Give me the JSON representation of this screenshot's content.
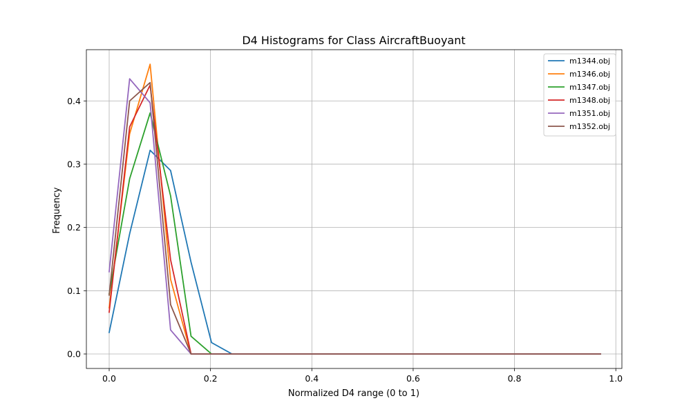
{
  "chart_data": {
    "type": "line",
    "title": "D4 Histograms for Class AircraftBuoyant",
    "xlabel": "Normalized D4 range (0 to 1)",
    "ylabel": "Frequency",
    "xlim": [
      -0.045,
      1.012
    ],
    "ylim": [
      -0.0229,
      0.481
    ],
    "xticks": [
      0.0,
      0.2,
      0.4,
      0.6,
      0.8,
      1.0
    ],
    "xtick_labels": [
      "0.0",
      "0.2",
      "0.4",
      "0.6",
      "0.8",
      "1.0"
    ],
    "yticks": [
      0.0,
      0.1,
      0.2,
      0.3,
      0.4
    ],
    "ytick_labels": [
      "0.0",
      "0.1",
      "0.2",
      "0.3",
      "0.4"
    ],
    "grid": true,
    "legend_position": "top-right",
    "x": [
      0.0,
      0.0404,
      0.0808,
      0.1212,
      0.1616,
      0.202,
      0.2424,
      0.2828,
      0.3232,
      0.3636,
      0.404,
      0.4444,
      0.4848,
      0.5252,
      0.5657,
      0.6061,
      0.6465,
      0.6869,
      0.7273,
      0.7677,
      0.8081,
      0.8485,
      0.8889,
      0.9293,
      0.9697
    ],
    "series": [
      {
        "name": "m1344.obj",
        "color": "#1f77b4",
        "values": [
          0.034,
          0.19,
          0.322,
          0.29,
          0.145,
          0.018,
          0.0,
          0.0,
          0.0,
          0.0,
          0.0,
          0.0,
          0.0,
          0.0,
          0.0,
          0.0,
          0.0,
          0.0,
          0.0,
          0.0,
          0.0,
          0.0,
          0.0,
          0.0,
          0.0
        ]
      },
      {
        "name": "m1346.obj",
        "color": "#ff7f0e",
        "values": [
          0.073,
          0.348,
          0.458,
          0.118,
          0.0,
          0.0,
          0.0,
          0.0,
          0.0,
          0.0,
          0.0,
          0.0,
          0.0,
          0.0,
          0.0,
          0.0,
          0.0,
          0.0,
          0.0,
          0.0,
          0.0,
          0.0,
          0.0,
          0.0,
          0.0
        ]
      },
      {
        "name": "m1347.obj",
        "color": "#2ca02c",
        "values": [
          0.095,
          0.277,
          0.381,
          0.25,
          0.028,
          0.0,
          0.0,
          0.0,
          0.0,
          0.0,
          0.0,
          0.0,
          0.0,
          0.0,
          0.0,
          0.0,
          0.0,
          0.0,
          0.0,
          0.0,
          0.0,
          0.0,
          0.0,
          0.0,
          0.0
        ]
      },
      {
        "name": "m1348.obj",
        "color": "#d62728",
        "values": [
          0.066,
          0.359,
          0.425,
          0.149,
          0.0,
          0.0,
          0.0,
          0.0,
          0.0,
          0.0,
          0.0,
          0.0,
          0.0,
          0.0,
          0.0,
          0.0,
          0.0,
          0.0,
          0.0,
          0.0,
          0.0,
          0.0,
          0.0,
          0.0,
          0.0
        ]
      },
      {
        "name": "m1351.obj",
        "color": "#9467bd",
        "values": [
          0.13,
          0.435,
          0.397,
          0.038,
          0.0,
          0.0,
          0.0,
          0.0,
          0.0,
          0.0,
          0.0,
          0.0,
          0.0,
          0.0,
          0.0,
          0.0,
          0.0,
          0.0,
          0.0,
          0.0,
          0.0,
          0.0,
          0.0,
          0.0,
          0.0
        ]
      },
      {
        "name": "m1352.obj",
        "color": "#8c564b",
        "values": [
          0.093,
          0.4,
          0.429,
          0.078,
          0.0,
          0.0,
          0.0,
          0.0,
          0.0,
          0.0,
          0.0,
          0.0,
          0.0,
          0.0,
          0.0,
          0.0,
          0.0,
          0.0,
          0.0,
          0.0,
          0.0,
          0.0,
          0.0,
          0.0,
          0.0
        ]
      }
    ]
  }
}
